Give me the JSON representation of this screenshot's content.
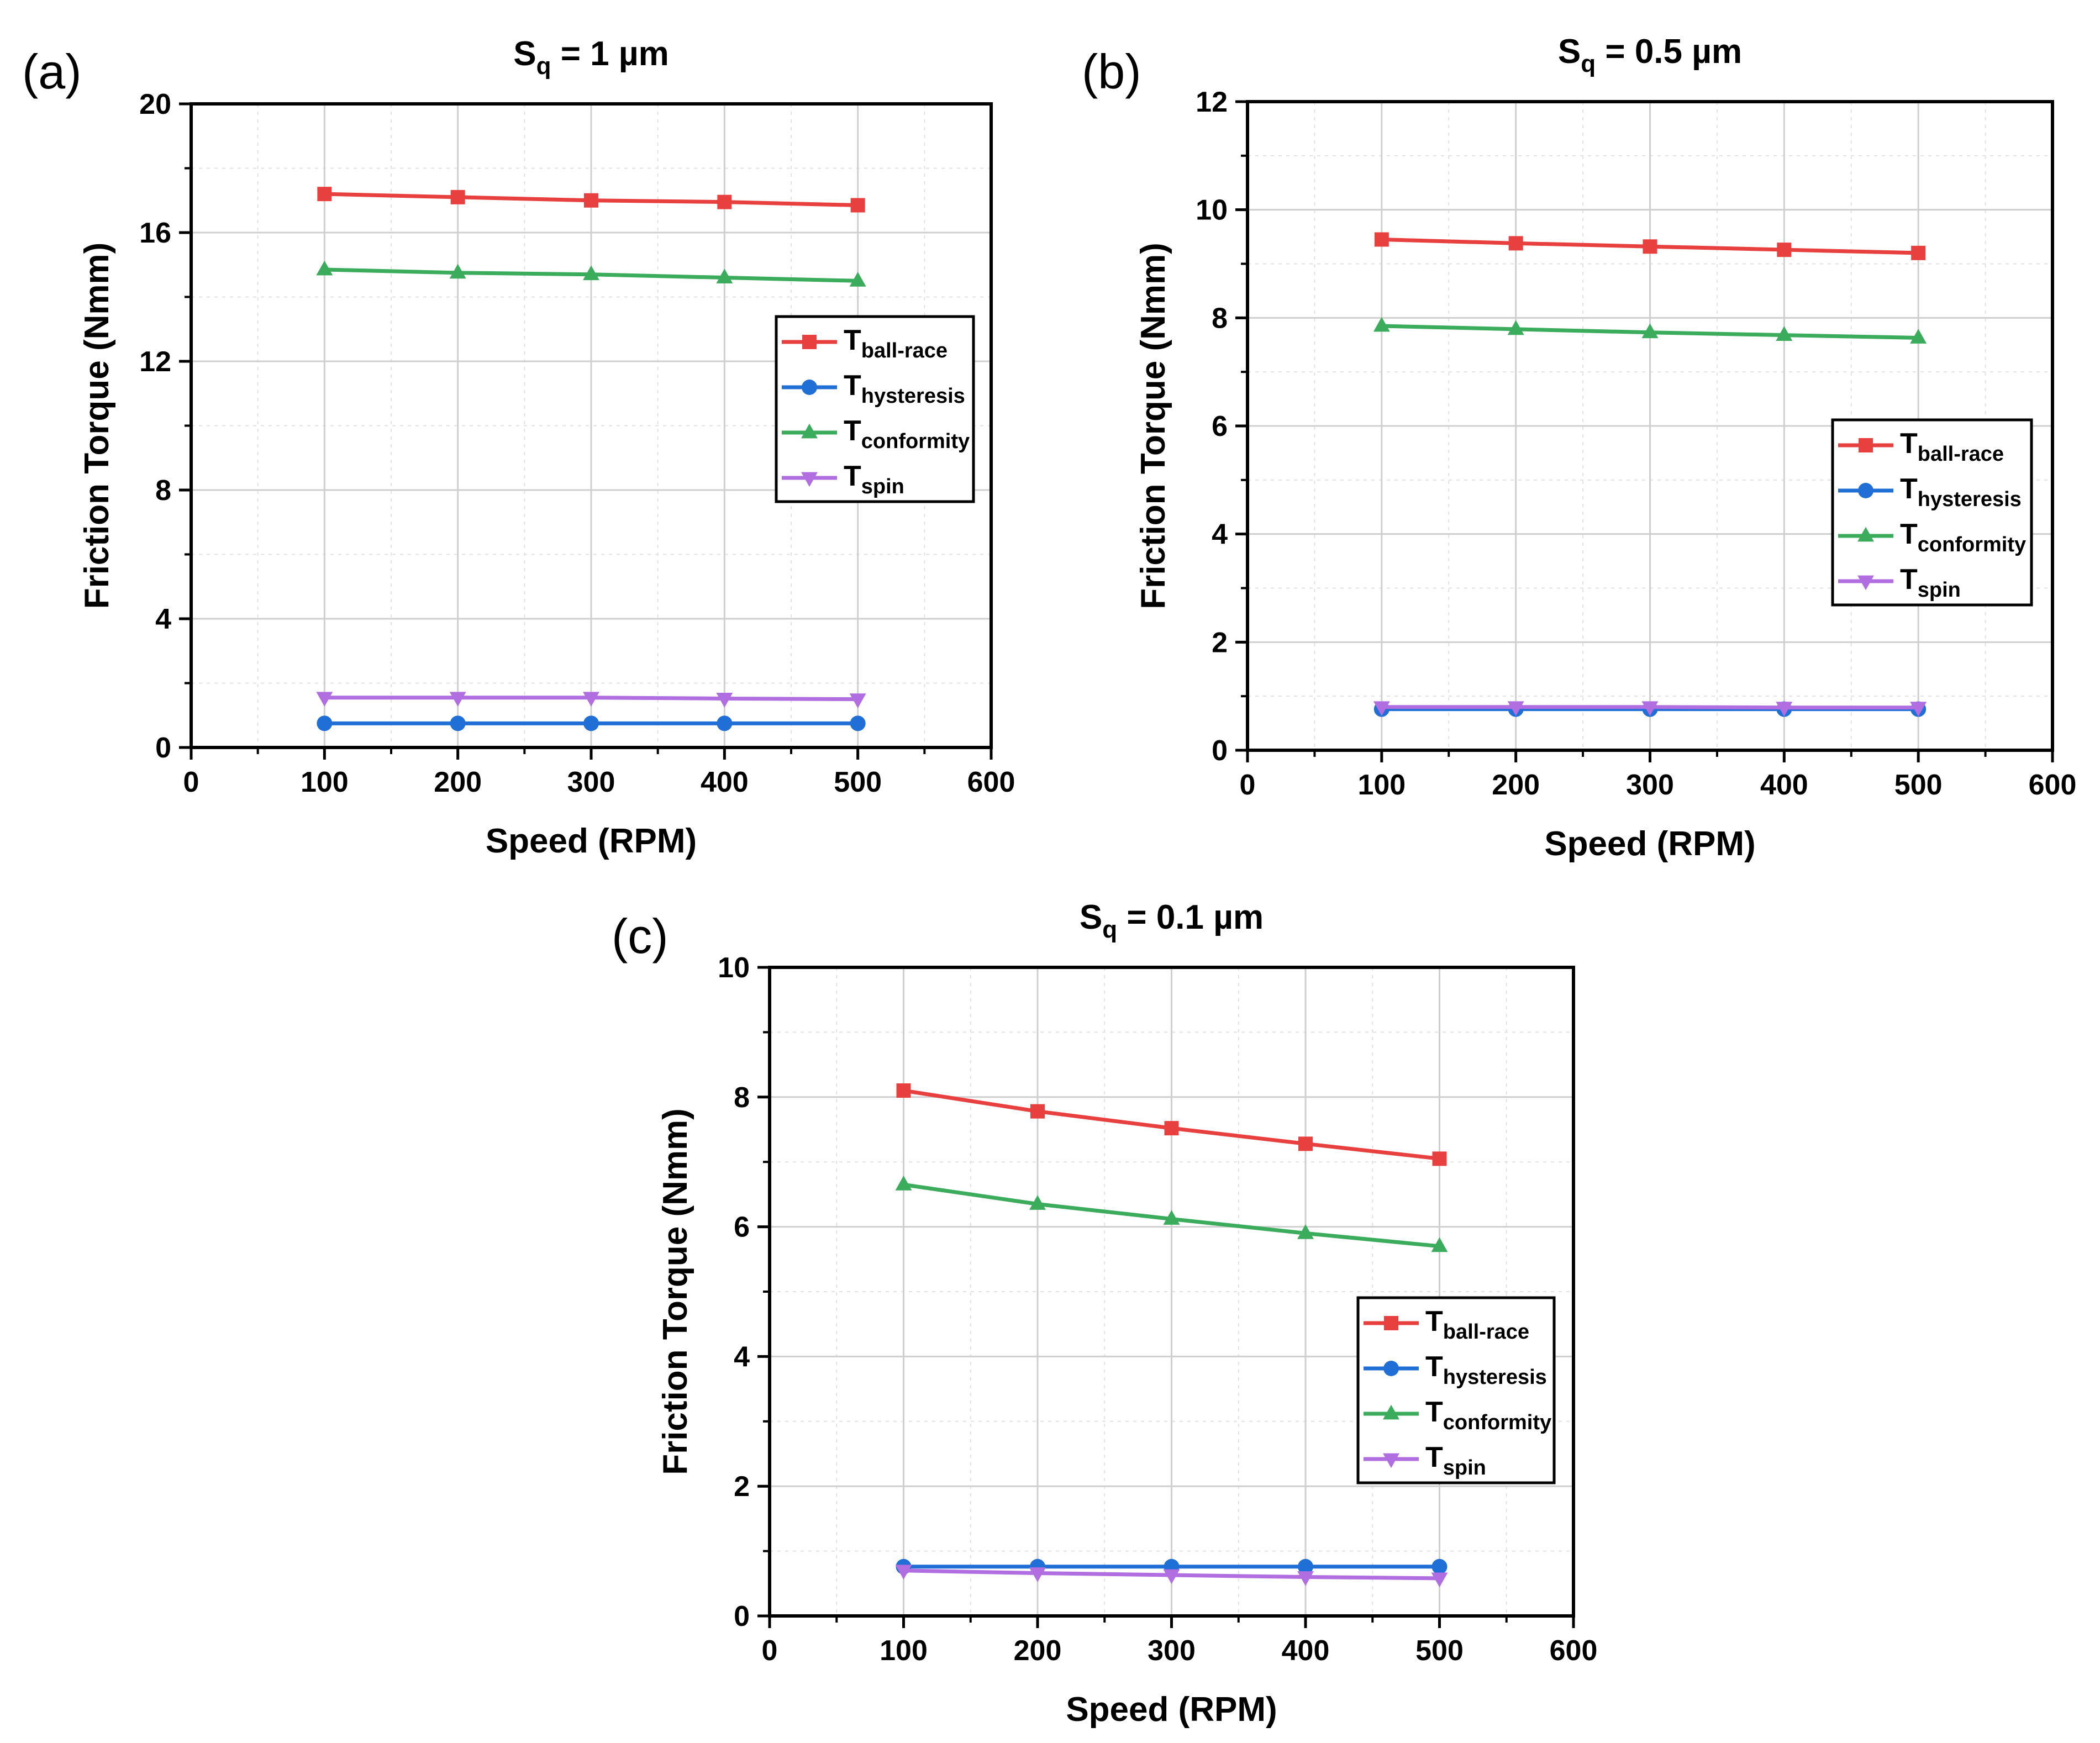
{
  "chart_data": [
    {
      "type": "line",
      "panel_label": "(a)",
      "title_main": "S",
      "title_sub": "q",
      "title_rest": " = 1 µm",
      "xlabel": "Speed (RPM)",
      "ylabel": "Friction Torque (Nmm)",
      "xlim": [
        0,
        600
      ],
      "ylim": [
        0,
        20
      ],
      "xticks": [
        0,
        100,
        200,
        300,
        400,
        500,
        600
      ],
      "yticks": [
        0,
        4,
        8,
        12,
        16,
        20
      ],
      "grid": true,
      "legend_position": "middle-right",
      "x": [
        100,
        200,
        300,
        400,
        500
      ],
      "series": [
        {
          "name": "T",
          "sub": "ball-race",
          "color": "#e8403f",
          "marker": "square",
          "values": [
            17.2,
            17.1,
            17.0,
            16.95,
            16.85
          ]
        },
        {
          "name": "T",
          "sub": "hysteresis",
          "color": "#1f6fd6",
          "marker": "circle",
          "values": [
            0.75,
            0.75,
            0.75,
            0.75,
            0.75
          ]
        },
        {
          "name": "T",
          "sub": "conformity",
          "color": "#3aac5b",
          "marker": "triangle-up",
          "values": [
            14.85,
            14.75,
            14.7,
            14.6,
            14.5
          ]
        },
        {
          "name": "T",
          "sub": "spin",
          "color": "#b06ee0",
          "marker": "triangle-down",
          "values": [
            1.55,
            1.55,
            1.55,
            1.52,
            1.5
          ]
        }
      ]
    },
    {
      "type": "line",
      "panel_label": "(b)",
      "title_main": "S",
      "title_sub": "q",
      "title_rest": " = 0.5 µm",
      "xlabel": "Speed (RPM)",
      "ylabel": "Friction Torque (Nmm)",
      "xlim": [
        0,
        600
      ],
      "ylim": [
        0,
        12
      ],
      "xticks": [
        0,
        100,
        200,
        300,
        400,
        500,
        600
      ],
      "yticks": [
        0,
        2,
        4,
        6,
        8,
        10,
        12
      ],
      "grid": true,
      "legend_position": "middle-right",
      "x": [
        100,
        200,
        300,
        400,
        500
      ],
      "series": [
        {
          "name": "T",
          "sub": "ball-race",
          "color": "#e8403f",
          "marker": "square",
          "values": [
            9.45,
            9.38,
            9.32,
            9.26,
            9.2
          ]
        },
        {
          "name": "T",
          "sub": "hysteresis",
          "color": "#1f6fd6",
          "marker": "circle",
          "values": [
            0.76,
            0.76,
            0.76,
            0.76,
            0.76
          ]
        },
        {
          "name": "T",
          "sub": "conformity",
          "color": "#3aac5b",
          "marker": "triangle-up",
          "values": [
            7.85,
            7.79,
            7.73,
            7.68,
            7.63
          ]
        },
        {
          "name": "T",
          "sub": "spin",
          "color": "#b06ee0",
          "marker": "triangle-down",
          "values": [
            0.8,
            0.8,
            0.8,
            0.79,
            0.79
          ]
        }
      ]
    },
    {
      "type": "line",
      "panel_label": "(c)",
      "title_main": "S",
      "title_sub": "q",
      "title_rest": " = 0.1 µm",
      "xlabel": "Speed (RPM)",
      "ylabel": "Friction Torque (Nmm)",
      "xlim": [
        0,
        600
      ],
      "ylim": [
        0,
        10
      ],
      "xticks": [
        0,
        100,
        200,
        300,
        400,
        500,
        600
      ],
      "yticks": [
        0,
        2,
        4,
        6,
        8,
        10
      ],
      "grid": true,
      "legend_position": "middle-right",
      "x": [
        100,
        200,
        300,
        400,
        500
      ],
      "series": [
        {
          "name": "T",
          "sub": "ball-race",
          "color": "#e8403f",
          "marker": "square",
          "values": [
            8.1,
            7.78,
            7.52,
            7.28,
            7.05
          ]
        },
        {
          "name": "T",
          "sub": "hysteresis",
          "color": "#1f6fd6",
          "marker": "circle",
          "values": [
            0.76,
            0.76,
            0.76,
            0.76,
            0.76
          ]
        },
        {
          "name": "T",
          "sub": "conformity",
          "color": "#3aac5b",
          "marker": "triangle-up",
          "values": [
            6.65,
            6.35,
            6.12,
            5.9,
            5.7
          ]
        },
        {
          "name": "T",
          "sub": "spin",
          "color": "#b06ee0",
          "marker": "triangle-down",
          "values": [
            0.7,
            0.66,
            0.63,
            0.6,
            0.58
          ]
        }
      ]
    }
  ]
}
